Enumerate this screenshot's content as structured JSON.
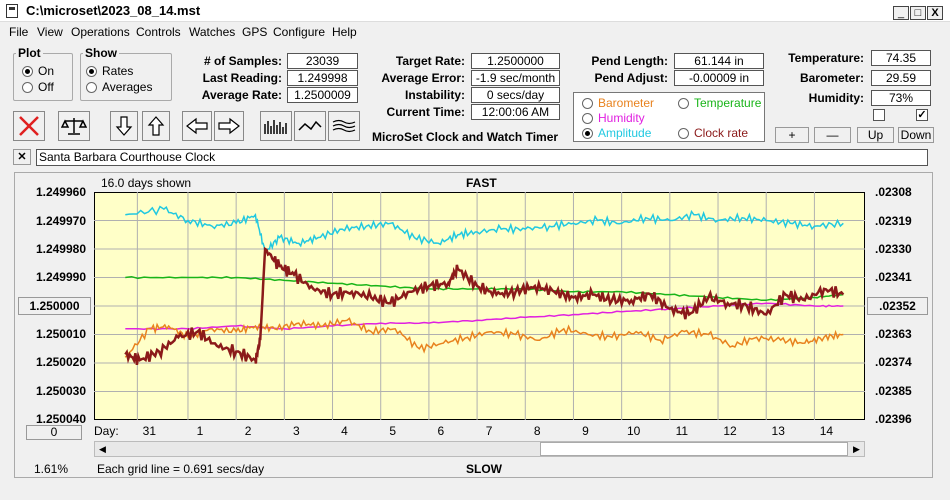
{
  "window": {
    "title": "C:\\microset\\2023_08_14.mst",
    "minimize": "_",
    "maximize": "□",
    "close": "X"
  },
  "menu": [
    "File",
    "View",
    "Operations",
    "Controls",
    "Watches",
    "GPS",
    "Configure",
    "Help"
  ],
  "plot_group": {
    "title": "Plot",
    "on": "On",
    "off": "Off",
    "selected": "On"
  },
  "show_group": {
    "title": "Show",
    "rates": "Rates",
    "averages": "Averages",
    "selected": "Rates"
  },
  "stats": {
    "samples_label": "# of Samples:",
    "samples": "23039",
    "last_label": "Last Reading:",
    "last": "1.249998",
    "avg_rate_label": "Average Rate:",
    "avg_rate": "1.2500009",
    "target_label": "Target Rate:",
    "target": "1.2500000",
    "avg_err_label": "Average Error:",
    "avg_err": "-1.9 sec/month",
    "instab_label": "Instability:",
    "instab": "0 secs/day",
    "time_label": "Current Time:",
    "time": "12:00:06 AM",
    "pend_len_label": "Pend Length:",
    "pend_len": "61.144 in",
    "pend_adj_label": "Pend Adjust:",
    "pend_adj": "-0.00009 in",
    "temp_label": "Temperature:",
    "temp": "74.35",
    "baro_label": "Barometer:",
    "baro": "29.59",
    "hum_label": "Humidity:",
    "hum": "73%"
  },
  "app_caption": "MicroSet Clock and Watch Timer",
  "legend_options": [
    {
      "label": "Barometer",
      "color": "#e8821e",
      "selected": false
    },
    {
      "label": "Temperature",
      "color": "#18b418",
      "selected": false
    },
    {
      "label": "Humidity",
      "color": "#e020e0",
      "selected": false
    },
    {
      "label": "Amplitude",
      "color": "#20c8e0",
      "selected": true
    },
    {
      "label": "Clock rate",
      "color": "#8b1a1a",
      "selected": false
    }
  ],
  "env_buttons": [
    "+",
    "—",
    "Up",
    "Down"
  ],
  "checkboxes": [
    {
      "checked": false
    },
    {
      "checked": true
    }
  ],
  "clock_name": "Santa Barbara Courthouse Clock",
  "close_x": "✕",
  "chart": {
    "days_shown": "16.0 days shown",
    "top_label": "FAST",
    "bottom_label": "SLOW",
    "day_label": "Day:",
    "grid_note": "Each grid line = 0.691 secs/day",
    "percent": "1.61%",
    "center_left": "1.250000",
    "center_right": ".02352",
    "zero_btn": "0"
  },
  "chart_data": {
    "type": "line",
    "left_ticks": [
      "1.249960",
      "1.249970",
      "1.249980",
      "1.249990",
      "1.250000",
      "1.250010",
      "1.250020",
      "1.250030",
      "1.250040"
    ],
    "right_ticks": [
      ".02308",
      ".02319",
      ".02330",
      ".02341",
      ".02352",
      ".02363",
      ".02374",
      ".02385",
      ".02396"
    ],
    "x_ticks": [
      "31",
      "1",
      "2",
      "3",
      "4",
      "5",
      "6",
      "7",
      "8",
      "9",
      "10",
      "11",
      "12",
      "13",
      "14"
    ],
    "ylim": [
      1.24996,
      1.25004
    ],
    "series": [
      {
        "name": "Amplitude",
        "color": "#20c8e0",
        "x": [
          -0.3,
          0.5,
          1.0,
          1.5,
          2.0,
          2.4,
          2.6,
          2.9,
          3.3,
          3.7,
          4.2,
          4.7,
          5.2,
          5.7,
          6.2,
          6.6,
          7.0,
          7.5,
          8.0,
          8.5,
          9.0,
          9.5,
          10.0,
          10.5,
          11.0,
          11.5,
          12.0,
          12.5,
          13.0,
          13.5,
          14.0,
          14.6
        ],
        "y": [
          1.249968,
          1.249966,
          1.24997,
          1.249972,
          1.249971,
          1.249968,
          1.249981,
          1.249976,
          1.249978,
          1.249976,
          1.249973,
          1.249972,
          1.249971,
          1.249976,
          1.249978,
          1.249975,
          1.249974,
          1.249973,
          1.249973,
          1.249972,
          1.249971,
          1.24997,
          1.249971,
          1.249969,
          1.24997,
          1.249968,
          1.24997,
          1.249969,
          1.24997,
          1.249971,
          1.249972,
          1.249971
        ]
      },
      {
        "name": "Temperature",
        "color": "#18b418",
        "x": [
          -0.3,
          1.0,
          2.0,
          3.0,
          4.0,
          5.0,
          6.0,
          7.0,
          8.0,
          9.0,
          10.0,
          11.0,
          12.0,
          13.0,
          14.0,
          14.6
        ],
        "y": [
          1.24999,
          1.24999,
          1.24999,
          1.249991,
          1.249992,
          1.249993,
          1.249994,
          1.249994,
          1.249994,
          1.249995,
          1.249995,
          1.249996,
          1.249997,
          1.249998,
          1.249997,
          1.249996
        ]
      },
      {
        "name": "Humidity",
        "color": "#e020e0",
        "x": [
          -0.3,
          1.0,
          2.0,
          3.0,
          4.0,
          5.0,
          6.0,
          7.0,
          8.0,
          9.0,
          10.0,
          11.0,
          12.0,
          13.0,
          14.0,
          14.6
        ],
        "y": [
          1.250008,
          1.250008,
          1.250007,
          1.250008,
          1.250007,
          1.250006,
          1.250006,
          1.250005,
          1.250004,
          1.250003,
          1.250002,
          1.250001,
          1.25,
          1.249999,
          1.25,
          1.25
        ]
      },
      {
        "name": "Barometer",
        "color": "#e8821e",
        "x": [
          -0.3,
          0.2,
          0.6,
          1.0,
          1.5,
          2.0,
          2.4,
          2.8,
          3.3,
          3.8,
          4.3,
          4.8,
          5.3,
          5.8,
          6.3,
          6.8,
          7.3,
          7.8,
          8.3,
          8.8,
          9.3,
          9.8,
          10.3,
          10.8,
          11.3,
          11.8,
          12.3,
          12.8,
          13.3,
          13.8,
          14.2,
          14.6
        ],
        "y": [
          1.250018,
          1.250008,
          1.250007,
          1.250011,
          1.250008,
          1.250009,
          1.250007,
          1.250008,
          1.250006,
          1.250007,
          1.250005,
          1.250009,
          1.250008,
          1.250015,
          1.250013,
          1.250011,
          1.250009,
          1.25001,
          1.250012,
          1.250008,
          1.25001,
          1.250011,
          1.250009,
          1.250012,
          1.250009,
          1.25001,
          1.250014,
          1.250011,
          1.250012,
          1.250013,
          1.250011,
          1.25001
        ]
      },
      {
        "name": "Clock rate",
        "color": "#8b1a1a",
        "x": [
          -0.3,
          0.0,
          0.4,
          0.8,
          1.2,
          1.6,
          2.0,
          2.4,
          2.5,
          2.6,
          2.9,
          3.2,
          3.6,
          4.0,
          4.4,
          4.8,
          5.2,
          5.6,
          6.0,
          6.4,
          6.6,
          7.0,
          7.4,
          7.8,
          8.2,
          8.6,
          9.0,
          9.4,
          9.8,
          10.2,
          10.6,
          11.0,
          11.4,
          11.8,
          12.2,
          12.6,
          13.0,
          13.4,
          13.8,
          14.2,
          14.6
        ],
        "y": [
          1.250017,
          1.250019,
          1.250016,
          1.250011,
          1.250009,
          1.250014,
          1.250016,
          1.250019,
          1.250012,
          1.24998,
          1.249986,
          1.249989,
          1.249994,
          1.249996,
          1.249995,
          1.249997,
          1.249999,
          1.249995,
          1.249993,
          1.249992,
          1.249987,
          1.249993,
          1.249996,
          1.249995,
          1.249993,
          1.249995,
          1.249997,
          1.249996,
          1.249998,
          1.249998,
          1.249996,
          1.250001,
          1.250003,
          1.249997,
          1.249999,
          1.25,
          1.250003,
          1.249996,
          1.249998,
          1.249994,
          1.249996
        ]
      }
    ]
  }
}
